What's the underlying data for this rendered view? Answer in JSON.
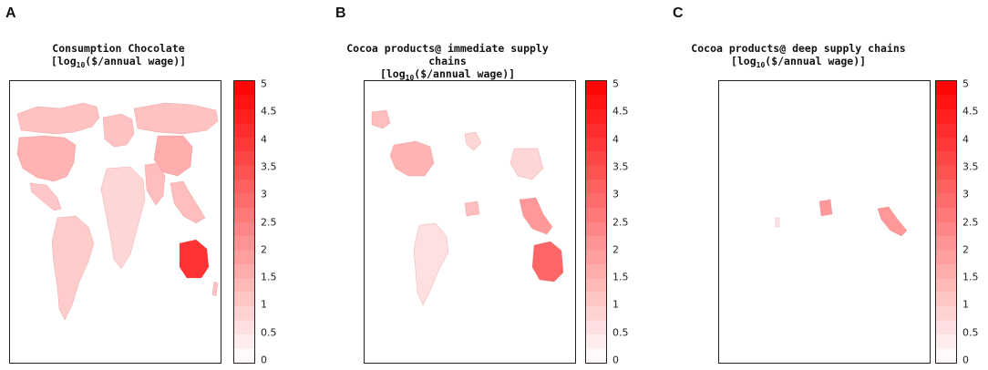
{
  "panels": [
    {
      "letter": "A",
      "title_line1": "Consumption Chocolate",
      "title_line2_pre": "[log",
      "title_line2_sub": "10",
      "title_line2_post": "($/annual wage)]",
      "colorbar_ticks": [
        "5",
        "4.5",
        "4",
        "3.5",
        "3",
        "2.5",
        "2",
        "1.5",
        "1",
        "0.5",
        "0"
      ],
      "regions": [
        {
          "name": "canada",
          "level": 1.2
        },
        {
          "name": "usa",
          "level": 1.5
        },
        {
          "name": "mexico",
          "level": 1.1
        },
        {
          "name": "south-america",
          "level": 1.0
        },
        {
          "name": "europe",
          "level": 1.2
        },
        {
          "name": "africa",
          "level": 0.8
        },
        {
          "name": "russia",
          "level": 1.2
        },
        {
          "name": "china",
          "level": 1.6
        },
        {
          "name": "south-asia",
          "level": 1.3
        },
        {
          "name": "southeast-asia",
          "level": 1.3
        },
        {
          "name": "australia",
          "level": 4.0
        },
        {
          "name": "new-zealand",
          "level": 1.2
        }
      ]
    },
    {
      "letter": "B",
      "title_line1": "Cocoa products@ immediate supply chains",
      "title_line2_pre": "[log",
      "title_line2_sub": "10",
      "title_line2_post": "($/annual wage)]",
      "colorbar_ticks": [
        "5",
        "4.5",
        "4",
        "3.5",
        "3",
        "2.5",
        "2",
        "1.5",
        "1",
        "0.5",
        "0"
      ],
      "regions": [
        {
          "name": "usa",
          "level": 1.5
        },
        {
          "name": "alaska",
          "level": 1.3
        },
        {
          "name": "south-america",
          "level": 0.6
        },
        {
          "name": "europe",
          "level": 0.8
        },
        {
          "name": "china",
          "level": 0.8
        },
        {
          "name": "africa-west",
          "level": 1.3
        },
        {
          "name": "southeast-asia",
          "level": 2.0
        },
        {
          "name": "australia",
          "level": 3.0
        }
      ]
    },
    {
      "letter": "C",
      "title_line1": "Cocoa products@ deep supply chains",
      "title_line2_pre": "[log",
      "title_line2_sub": "10",
      "title_line2_post": "($/annual wage)]",
      "colorbar_ticks": [
        "5",
        "4.5",
        "4",
        "3.5",
        "3",
        "2.5",
        "2",
        "1.5",
        "1",
        "0.5",
        "0"
      ],
      "regions": [
        {
          "name": "africa-west",
          "level": 2.0
        },
        {
          "name": "southeast-asia",
          "level": 2.0
        },
        {
          "name": "south-america",
          "level": 0.5
        }
      ]
    }
  ],
  "colorscale": {
    "min": 0,
    "max": 5,
    "low_color": "#ffffff",
    "high_color": "#ff0000"
  }
}
